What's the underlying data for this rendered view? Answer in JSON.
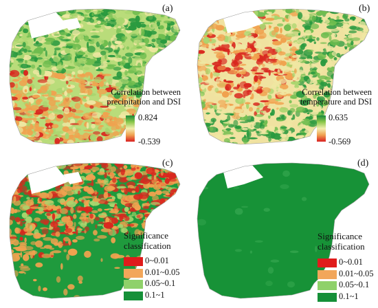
{
  "panels": [
    {
      "label": "(a)",
      "type": "correlation",
      "title_lines": [
        "Correlation between",
        "precipitation and DSI"
      ],
      "max": "0.824",
      "min": "-0.539",
      "gradient": [
        "#1a8a3a",
        "#8cc84b",
        "#f3efb0",
        "#f0a050",
        "#d92020"
      ]
    },
    {
      "label": "(b)",
      "type": "correlation",
      "title_lines": [
        "Correlation between",
        "temperature and DSI"
      ],
      "max": "0.635",
      "min": "-0.569",
      "gradient": [
        "#1a8a3a",
        "#8cc84b",
        "#f3efb0",
        "#f0a050",
        "#d92020"
      ]
    },
    {
      "label": "(c)",
      "type": "significance",
      "title_lines": [
        "Significance",
        "classification"
      ]
    },
    {
      "label": "(d)",
      "type": "significance",
      "title_lines": [
        "Significance",
        "classification"
      ]
    }
  ],
  "significance_classes": [
    {
      "label": "0~0.01",
      "color": "#e01b1b"
    },
    {
      "label": "0.01~0.05",
      "color": "#f2a65a"
    },
    {
      "label": "0.05~0.1",
      "color": "#8fd16a"
    },
    {
      "label": "0.1~1",
      "color": "#159038"
    }
  ],
  "map_colors": {
    "green_dark": "#2a9a3f",
    "green_light": "#a8d56e",
    "yellow": "#efe7a2",
    "orange": "#f0a24f",
    "red": "#d9281f",
    "white": "#ffffff"
  }
}
